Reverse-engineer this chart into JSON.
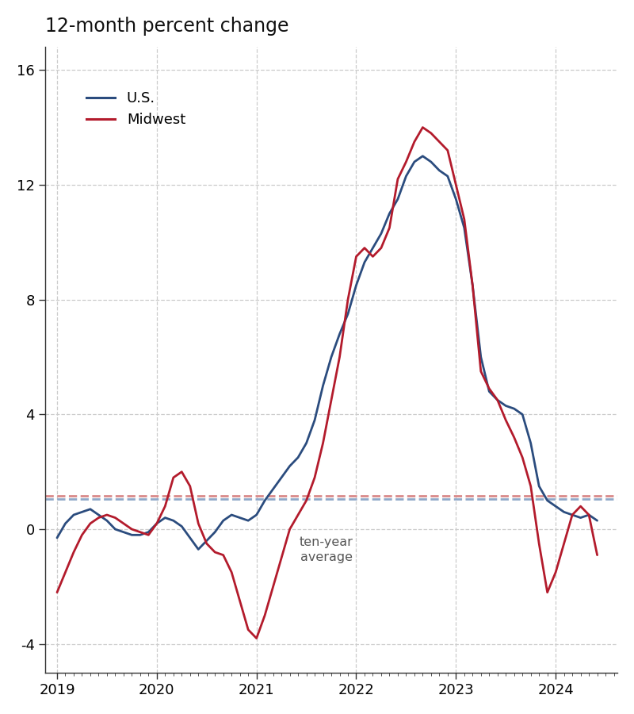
{
  "title": "12-month percent change",
  "us_cagr": 1.05,
  "midwest_cagr": 1.15,
  "us_color": "#2B4C7E",
  "midwest_color": "#B31B2C",
  "cagr_us_color": "#8FA8C8",
  "cagr_midwest_color": "#D98A8A",
  "ylim": [
    -4.8,
    16.5
  ],
  "yticks": [
    -4,
    0,
    4,
    8,
    12,
    16
  ],
  "background_color": "#FFFFFF",
  "grid_color": "#CCCCCC",
  "annotation_text": "ten-year\naverage",
  "legend_labels": [
    "U.S.",
    "Midwest"
  ],
  "us_monthly": [
    -0.3,
    0.2,
    0.5,
    0.6,
    0.7,
    0.5,
    0.3,
    0.0,
    -0.1,
    -0.2,
    -0.2,
    -0.1,
    0.2,
    0.4,
    0.3,
    0.1,
    -0.3,
    -0.7,
    -0.4,
    -0.1,
    0.3,
    0.5,
    0.4,
    0.3,
    0.5,
    1.0,
    1.4,
    1.8,
    2.2,
    2.5,
    3.0,
    3.8,
    5.0,
    6.0,
    6.8,
    7.5,
    8.5,
    9.3,
    9.8,
    10.3,
    11.0,
    11.5,
    12.3,
    12.8,
    13.0,
    12.8,
    12.5,
    12.3,
    11.5,
    10.5,
    8.5,
    6.0,
    4.8,
    4.5,
    4.3,
    4.2,
    4.0,
    3.0,
    1.5,
    1.0,
    0.8,
    0.6,
    0.5,
    0.4,
    0.5,
    0.3
  ],
  "midwest_monthly": [
    -2.2,
    -1.5,
    -0.8,
    -0.2,
    0.2,
    0.4,
    0.5,
    0.4,
    0.2,
    0.0,
    -0.1,
    -0.2,
    0.2,
    0.8,
    1.8,
    2.0,
    1.5,
    0.2,
    -0.5,
    -0.8,
    -0.9,
    -1.5,
    -2.5,
    -3.5,
    -3.8,
    -3.0,
    -2.0,
    -1.0,
    0.0,
    0.5,
    1.0,
    1.8,
    3.0,
    4.5,
    6.0,
    8.0,
    9.5,
    9.8,
    9.5,
    9.8,
    10.5,
    12.2,
    12.8,
    13.5,
    14.0,
    13.8,
    13.5,
    13.2,
    12.0,
    10.8,
    8.5,
    5.5,
    4.9,
    4.5,
    3.8,
    3.2,
    2.5,
    1.5,
    -0.5,
    -2.2,
    -1.5,
    -0.5,
    0.5,
    0.8,
    0.5,
    -0.9
  ]
}
